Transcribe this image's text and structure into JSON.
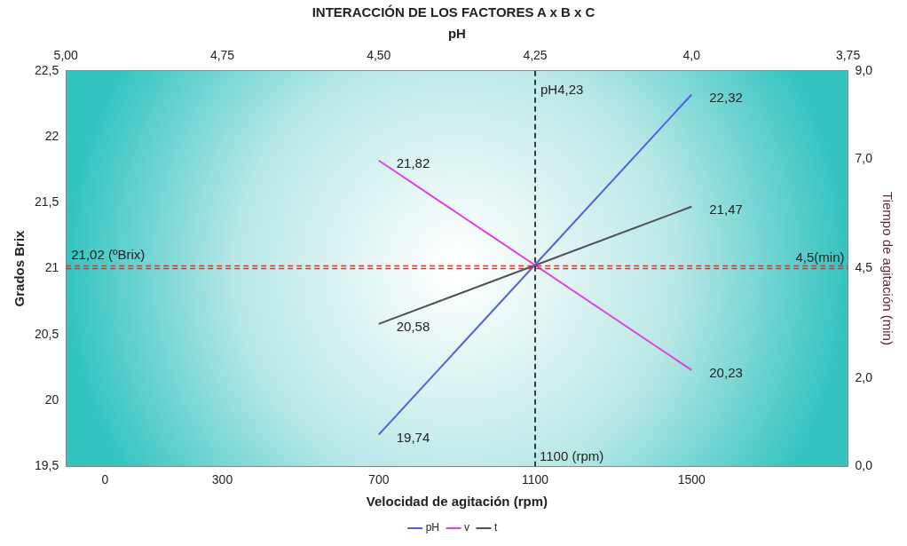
{
  "chart_data": {
    "type": "line",
    "title": "INTERACCIÓN DE LOS FACTORES A x B x C",
    "xlabel": "Velocidad de agitación (rpm)",
    "x2label": "pH",
    "ylabel": "Grados Brix",
    "y2label": "Tiempo de agitación (min)",
    "xlim": [
      -100,
      1900
    ],
    "xticks": [
      0,
      300,
      700,
      1100,
      1500
    ],
    "x2lim": [
      5.0,
      3.75
    ],
    "x2ticks": [
      {
        "value": 5.0,
        "label": "5,00"
      },
      {
        "value": 4.75,
        "label": "4,75"
      },
      {
        "value": 4.5,
        "label": "4,50"
      },
      {
        "value": 4.25,
        "label": "4,25"
      },
      {
        "value": 4.0,
        "label": "4,0"
      },
      {
        "value": 3.75,
        "label": "3,75"
      }
    ],
    "ylim": [
      19.5,
      22.5
    ],
    "yticks": [
      {
        "value": 19.5,
        "label": "19,5"
      },
      20,
      {
        "value": 20.5,
        "label": "20,5"
      },
      21,
      {
        "value": 21.5,
        "label": "21,5"
      },
      22,
      {
        "value": 22.5,
        "label": "22,5"
      }
    ],
    "y2lim": [
      0,
      9
    ],
    "y2ticks": [
      {
        "value": 0,
        "label": "0,0"
      },
      {
        "value": 2,
        "label": "2,0"
      },
      {
        "value": 4.5,
        "label": "4,5"
      },
      {
        "value": 7,
        "label": "7,0"
      },
      {
        "value": 9,
        "label": "9,0"
      }
    ],
    "x": [
      700,
      1500
    ],
    "series": [
      {
        "name": "pH",
        "color": "#4f5ee0",
        "values": [
          19.74,
          22.32
        ],
        "value_labels": [
          "19,74",
          "22,32"
        ]
      },
      {
        "name": "v",
        "color": "#e040e0",
        "values": [
          21.82,
          20.23
        ],
        "value_labels": [
          "21,82",
          "20,23"
        ]
      },
      {
        "name": "t",
        "color": "#505050",
        "values": [
          20.58,
          21.47
        ],
        "value_labels": [
          "20,58",
          "21,47"
        ]
      }
    ],
    "ref_lines": [
      {
        "axis": "y",
        "value": 21.02,
        "label": "21,02 (ºBrix)",
        "color": "#e03030",
        "line_style": "dashed"
      },
      {
        "axis": "y2",
        "value": 4.5,
        "label": "4,5(min)",
        "color": "#e03030",
        "line_style": "dashed"
      },
      {
        "axis": "x",
        "value": 1100,
        "label": "1100 (rpm)",
        "color": "#000000",
        "line_style": "dashed"
      }
    ],
    "annotations": [
      {
        "text": "pH4,23",
        "x": 1100,
        "y": 22.35
      }
    ],
    "legend": "bottom",
    "marker": "none",
    "line_style": "solid"
  }
}
